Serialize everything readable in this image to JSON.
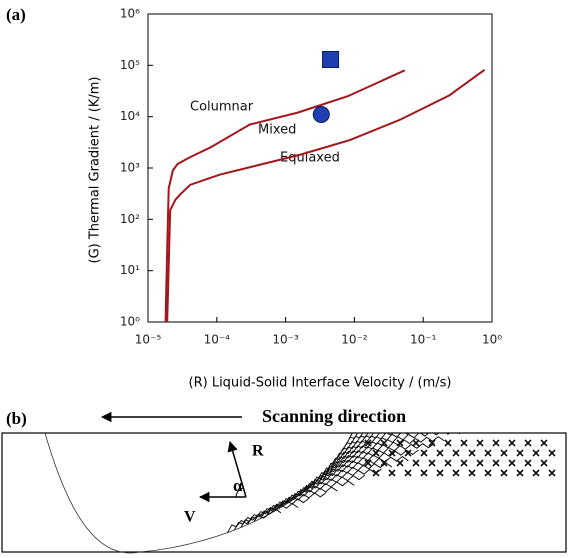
{
  "figure": {
    "panel_a": "(a)"
  },
  "chart_data": {
    "type": "line",
    "xlabel": "(R) Liquid-Solid Interface Velocity / (m/s)",
    "ylabel": "(G) Thermal Gradient / (K/m)",
    "xscale": "log",
    "yscale": "log",
    "xlim": [
      1e-05,
      1
    ],
    "ylim": [
      1,
      1000000
    ],
    "xticks": [
      {
        "value": 1e-05,
        "label": "10⁻⁵"
      },
      {
        "value": 0.0001,
        "label": "10⁻⁴"
      },
      {
        "value": 0.001,
        "label": "10⁻³"
      },
      {
        "value": 0.01,
        "label": "10⁻²"
      },
      {
        "value": 0.1,
        "label": "10⁻¹"
      },
      {
        "value": 1,
        "label": "10⁰"
      }
    ],
    "yticks": [
      {
        "value": 1,
        "label": "10⁰"
      },
      {
        "value": 10,
        "label": "10¹"
      },
      {
        "value": 100,
        "label": "10²"
      },
      {
        "value": 1000,
        "label": "10³"
      },
      {
        "value": 10000,
        "label": "10⁴"
      },
      {
        "value": 100000,
        "label": "10⁵"
      },
      {
        "value": 1000000,
        "label": "10⁶"
      }
    ],
    "annotations": [
      "Columnar",
      "Mixed",
      "Equiaxed"
    ],
    "series": [
      {
        "color": "#a3161c",
        "marker": "none",
        "x": [
          1.8e-05,
          1.9e-05,
          2e-05,
          2.3e-05,
          2.7e-05,
          4e-05,
          8e-05,
          0.0003,
          0.0015,
          0.008,
          0.054
        ],
        "values": [
          1,
          25,
          400,
          900,
          1200,
          1600,
          2500,
          7000,
          12000,
          25000,
          80000
        ]
      },
      {
        "color": "#a3161c",
        "marker": "none",
        "x": [
          1.9e-05,
          2.1e-05,
          2.5e-05,
          2.9e-05,
          4.1e-05,
          0.00011,
          0.0016,
          0.0086,
          0.046,
          0.24,
          0.78
        ],
        "values": [
          1,
          150,
          240,
          300,
          470,
          740,
          1800,
          3500,
          8700,
          26000,
          82000
        ]
      },
      {
        "color": "#1f3fb0",
        "marker": "square",
        "x": [
          0.0045
        ],
        "values": [
          130000
        ]
      },
      {
        "color": "#1f3fb0",
        "marker": "circle",
        "x": [
          0.0033
        ],
        "values": [
          11000
        ]
      }
    ]
  },
  "diagram": {
    "panel_label": "(b)",
    "scanning_direction": "Scanning direction",
    "r_label": "R",
    "v_label": "V",
    "alpha_label": "α"
  }
}
